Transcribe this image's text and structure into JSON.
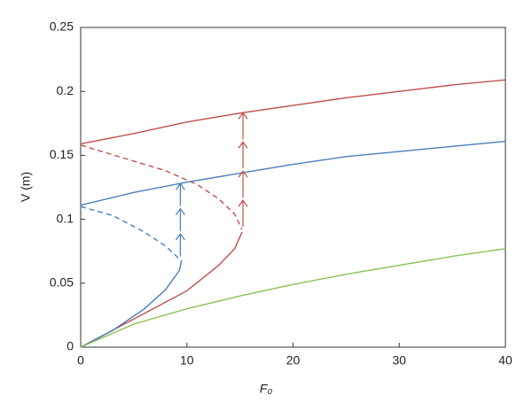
{
  "chart_data": {
    "type": "line",
    "xlabel": "F₀",
    "ylabel": "V (m)",
    "xlim": [
      0,
      40
    ],
    "ylim": [
      0,
      0.25
    ],
    "xticks": [
      0,
      10,
      20,
      30,
      40
    ],
    "yticks": [
      0,
      0.05,
      0.1,
      0.15,
      0.2,
      0.25
    ],
    "series": [
      {
        "color": "#c0504d",
        "dashed": false,
        "x": [
          0,
          5,
          10,
          15,
          20,
          25,
          30,
          35,
          40
        ],
        "values": [
          0.159,
          0.167,
          0.176,
          0.183,
          0.189,
          0.195,
          0.2,
          0.205,
          0.209
        ]
      },
      {
        "color": "#c0504d",
        "dashed": true,
        "x": [
          0,
          4,
          8,
          11,
          13,
          14.5,
          15.2
        ],
        "values": [
          0.158,
          0.148,
          0.138,
          0.127,
          0.116,
          0.104,
          0.092
        ]
      },
      {
        "color": "#c0504d",
        "dashed": false,
        "x": [
          0,
          5,
          10,
          13,
          14.5,
          15.2
        ],
        "values": [
          0,
          0.022,
          0.044,
          0.064,
          0.077,
          0.09
        ]
      },
      {
        "color": "#4a7ebb",
        "dashed": false,
        "x": [
          0,
          5,
          10,
          15,
          20,
          25,
          30,
          35,
          40
        ],
        "values": [
          0.111,
          0.121,
          0.129,
          0.136,
          0.143,
          0.149,
          0.153,
          0.157,
          0.161
        ]
      },
      {
        "color": "#4a7ebb",
        "dashed": true,
        "x": [
          0,
          3,
          6,
          8,
          9.3
        ],
        "values": [
          0.11,
          0.103,
          0.09,
          0.079,
          0.069
        ]
      },
      {
        "color": "#4a7ebb",
        "dashed": false,
        "x": [
          0,
          3,
          6,
          8,
          9.3,
          9.5
        ],
        "values": [
          0,
          0.013,
          0.03,
          0.045,
          0.06,
          0.068
        ]
      },
      {
        "color": "#8cc152",
        "dashed": false,
        "x": [
          0,
          5,
          10,
          15,
          20,
          25,
          30,
          35,
          40
        ],
        "values": [
          0,
          0.018,
          0.03,
          0.04,
          0.049,
          0.057,
          0.064,
          0.071,
          0.077
        ]
      }
    ]
  }
}
